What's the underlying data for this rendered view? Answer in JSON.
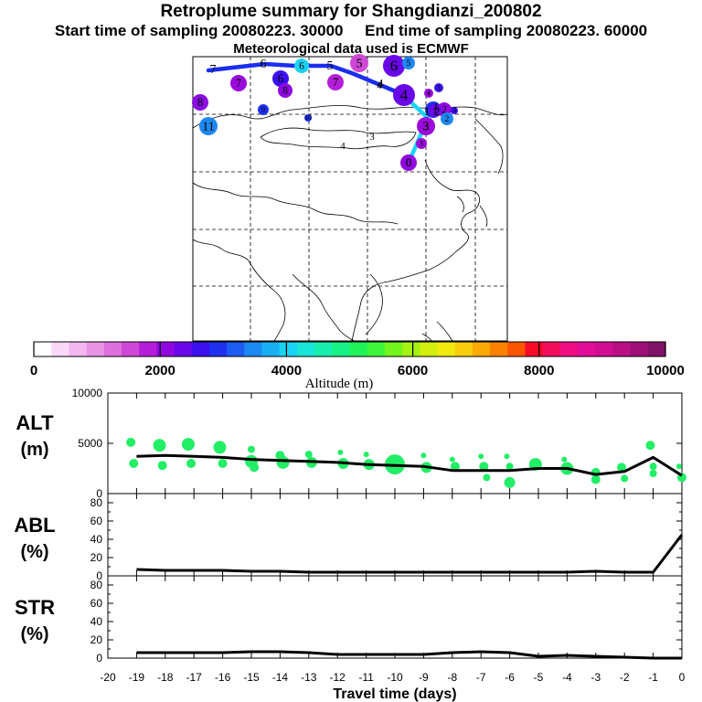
{
  "header": {
    "title": "Retroplume summary for Shangdianzi_200802",
    "start_label": "Start time of sampling 20080223. 30000",
    "end_label": "End time of sampling 20080223. 60000",
    "meteo_label": "Meteorological data used is ECMWF"
  },
  "colorbar": {
    "label": "Altitude (m)",
    "tick_labels": [
      "0",
      "2000",
      "4000",
      "6000",
      "8000",
      "10000"
    ],
    "colors": [
      "#ffffff",
      "#f9d9f7",
      "#f2b7ef",
      "#e995e6",
      "#de70de",
      "#cf47d7",
      "#b51ed8",
      "#9008e0",
      "#6a07ea",
      "#3c10ee",
      "#1f30ef",
      "#1c5cf1",
      "#1c88f2",
      "#19b0f3",
      "#1ad3f2",
      "#19e6d6",
      "#17eeae",
      "#17f184",
      "#20f25a",
      "#3ff43a",
      "#72f41c",
      "#a5f10f",
      "#d1ee0c",
      "#f0ea0f",
      "#f8cd0b",
      "#faa905",
      "#fb8102",
      "#fb5500",
      "#f60c28",
      "#f30e5c",
      "#ee0d82",
      "#e10c98",
      "#d00d93",
      "#b80f85",
      "#9e0f78",
      "#7e1265"
    ]
  },
  "map": {
    "trajectory_numbers_blue": [
      "7",
      "6",
      "5",
      "4"
    ],
    "trajectory_numbers_cyan": [
      "3",
      "2",
      "1",
      "0"
    ],
    "cluster_labels": [
      "8",
      "7",
      "6",
      "8",
      "6",
      "7",
      "5",
      "6",
      "5",
      "4",
      "4",
      "3",
      "4",
      "3",
      "2",
      "1",
      "2",
      "3",
      "11",
      "9",
      "10",
      "3",
      "0"
    ],
    "map_labels": [
      "4",
      "3",
      "4",
      "1"
    ],
    "colors": {
      "plume_line_1": "#1a2ef0",
      "plume_line_2": "#1ad3f2"
    }
  },
  "chart_data": [
    {
      "type": "line",
      "panel": "ALT",
      "title": "ALT",
      "ylabel": "(m)",
      "xlabel": "",
      "ylim": [
        0,
        10000
      ],
      "y_ticks": [
        "0",
        "5000",
        "10000"
      ],
      "x": [
        -19,
        -18,
        -17,
        -16,
        -15,
        -14,
        -13,
        -12,
        -11,
        -10,
        -9,
        -8,
        -7,
        -6,
        -5,
        -4,
        -3,
        -2,
        -1,
        0
      ],
      "series": [
        {
          "name": "mean altitude",
          "values": [
            3700,
            3800,
            3700,
            3600,
            3400,
            3300,
            3200,
            3100,
            2900,
            2800,
            2700,
            2300,
            2300,
            2300,
            2500,
            2500,
            1900,
            2200,
            3600,
            1800
          ]
        }
      ],
      "scatter": [
        {
          "x": -19.2,
          "y": 5100,
          "s": 5
        },
        {
          "x": -19.1,
          "y": 3000,
          "s": 5
        },
        {
          "x": -18.2,
          "y": 4800,
          "s": 7
        },
        {
          "x": -18.1,
          "y": 2800,
          "s": 5
        },
        {
          "x": -17.2,
          "y": 4900,
          "s": 7
        },
        {
          "x": -17.1,
          "y": 3000,
          "s": 5
        },
        {
          "x": -16.1,
          "y": 4600,
          "s": 7
        },
        {
          "x": -16.0,
          "y": 3000,
          "s": 5
        },
        {
          "x": -15.0,
          "y": 4400,
          "s": 4
        },
        {
          "x": -15.0,
          "y": 3200,
          "s": 7
        },
        {
          "x": -14.9,
          "y": 2600,
          "s": 5
        },
        {
          "x": -14.0,
          "y": 3800,
          "s": 5
        },
        {
          "x": -13.9,
          "y": 3100,
          "s": 7
        },
        {
          "x": -13.0,
          "y": 3900,
          "s": 4
        },
        {
          "x": -12.9,
          "y": 3100,
          "s": 6
        },
        {
          "x": -11.9,
          "y": 4100,
          "s": 3
        },
        {
          "x": -11.8,
          "y": 3000,
          "s": 6
        },
        {
          "x": -11.0,
          "y": 3900,
          "s": 3
        },
        {
          "x": -10.9,
          "y": 2900,
          "s": 6
        },
        {
          "x": -10.0,
          "y": 2900,
          "s": 11
        },
        {
          "x": -9.0,
          "y": 3800,
          "s": 3
        },
        {
          "x": -8.9,
          "y": 2600,
          "s": 6
        },
        {
          "x": -8.0,
          "y": 3400,
          "s": 3
        },
        {
          "x": -7.9,
          "y": 2700,
          "s": 5
        },
        {
          "x": -7.0,
          "y": 3700,
          "s": 3
        },
        {
          "x": -6.9,
          "y": 2700,
          "s": 5
        },
        {
          "x": -6.8,
          "y": 1600,
          "s": 4
        },
        {
          "x": -6.1,
          "y": 3700,
          "s": 3
        },
        {
          "x": -6.0,
          "y": 2700,
          "s": 4
        },
        {
          "x": -6.0,
          "y": 1100,
          "s": 6
        },
        {
          "x": -5.1,
          "y": 2900,
          "s": 7
        },
        {
          "x": -4.1,
          "y": 3400,
          "s": 3
        },
        {
          "x": -4.0,
          "y": 2500,
          "s": 7
        },
        {
          "x": -3.0,
          "y": 2100,
          "s": 5
        },
        {
          "x": -3.0,
          "y": 1400,
          "s": 5
        },
        {
          "x": -2.1,
          "y": 2600,
          "s": 5
        },
        {
          "x": -2.0,
          "y": 1500,
          "s": 4
        },
        {
          "x": -1.1,
          "y": 4800,
          "s": 5
        },
        {
          "x": -1.0,
          "y": 2700,
          "s": 4
        },
        {
          "x": -1.0,
          "y": 2000,
          "s": 4
        },
        {
          "x": -0.1,
          "y": 2700,
          "s": 3
        },
        {
          "x": 0.0,
          "y": 1600,
          "s": 5
        }
      ],
      "scatter_color": "#22ee66"
    },
    {
      "type": "line",
      "panel": "ABL",
      "title": "ABL",
      "ylabel": "(%)",
      "ylim": [
        0,
        90
      ],
      "y_ticks": [
        "0",
        "20",
        "40",
        "60",
        "80"
      ],
      "x": [
        -19,
        -18,
        -17,
        -16,
        -15,
        -14,
        -13,
        -12,
        -11,
        -10,
        -9,
        -8,
        -7,
        -6,
        -5,
        -4,
        -3,
        -2,
        -1,
        0
      ],
      "series": [
        {
          "name": "ABL fraction",
          "values": [
            7,
            6,
            6,
            6,
            5,
            5,
            4,
            4,
            4,
            4,
            4,
            4,
            4,
            4,
            4,
            4,
            5,
            4,
            4,
            45
          ]
        }
      ]
    },
    {
      "type": "line",
      "panel": "STR",
      "title": "STR",
      "ylabel": "(%)",
      "ylim": [
        0,
        90
      ],
      "y_ticks": [
        "0",
        "20",
        "40",
        "60",
        "80"
      ],
      "x": [
        -19,
        -18,
        -17,
        -16,
        -15,
        -14,
        -13,
        -12,
        -11,
        -10,
        -9,
        -8,
        -7,
        -6,
        -5,
        -4,
        -3,
        -2,
        -1,
        0
      ],
      "series": [
        {
          "name": "stratospheric fraction",
          "values": [
            6,
            6,
            6,
            6,
            7,
            7,
            6,
            4,
            4,
            4,
            4,
            6,
            7,
            6,
            2,
            3,
            2,
            1,
            0,
            0
          ]
        }
      ],
      "x_tick_labels": [
        "-20",
        "-19",
        "-18",
        "-17",
        "-16",
        "-15",
        "-14",
        "-13",
        "-12",
        "-11",
        "-10",
        "-9",
        "-8",
        "-7",
        "-6",
        "-5",
        "-4",
        "-3",
        "-2",
        "-1",
        "0"
      ],
      "x_axis_label": "Travel time (days)"
    }
  ]
}
